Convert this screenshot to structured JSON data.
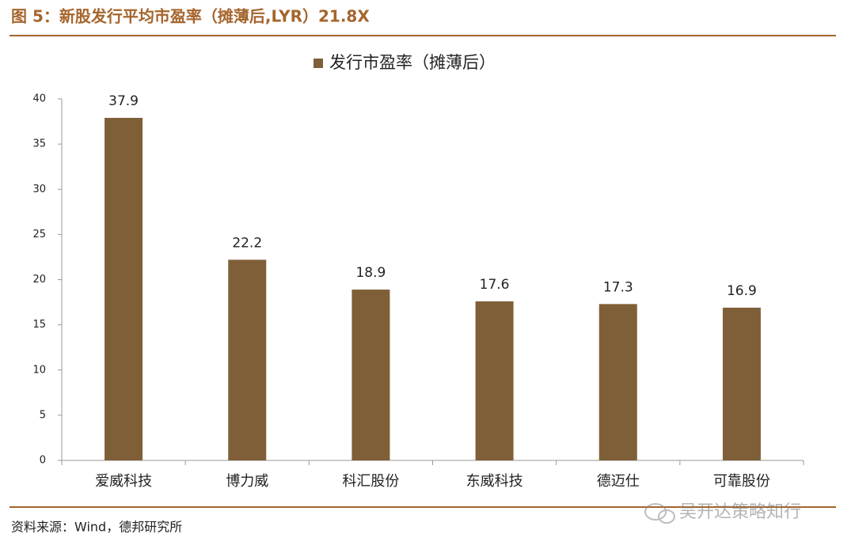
{
  "chart_data": {
    "type": "bar",
    "title": "图 5：新股发行平均市盈率（摊薄后,LYR）21.8X",
    "series": [
      {
        "name": "发行市盈率（摊薄后）",
        "color": "#7f5f37",
        "values": [
          37.9,
          22.2,
          18.9,
          17.6,
          17.3,
          16.9
        ]
      }
    ],
    "categories": [
      "爱威科技",
      "博力威",
      "科汇股份",
      "东威科技",
      "德迈仕",
      "可靠股份"
    ],
    "ylim": [
      0,
      40
    ],
    "yticks": [
      0,
      5,
      10,
      15,
      20,
      25,
      30,
      35,
      40
    ],
    "data_labels": true,
    "source": "资料来源：Wind，德邦研究所",
    "watermark": "吴开达策略知行"
  }
}
